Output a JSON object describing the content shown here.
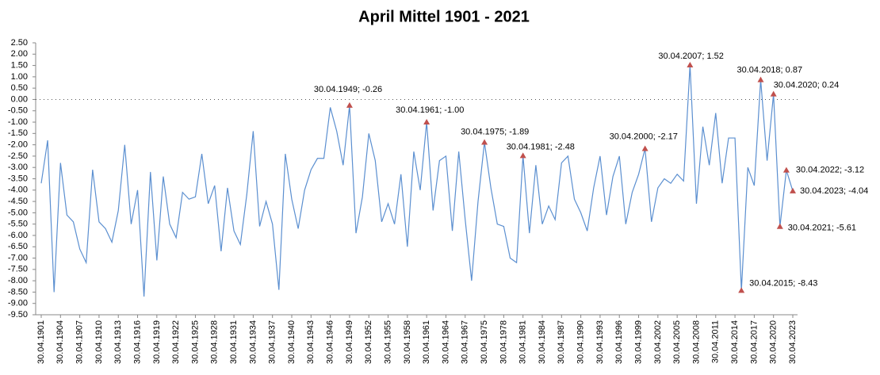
{
  "chart_data": {
    "type": "line",
    "title": "April Mittel 1901 - 2021",
    "categories": [
      "30.04.1901",
      null,
      null,
      "30.04.1904",
      null,
      null,
      "30.04.1907",
      null,
      null,
      "30.04.1910",
      null,
      null,
      "30.04.1913",
      null,
      null,
      "30.04.1916",
      null,
      null,
      "30.04.1919",
      null,
      null,
      "30.04.1922",
      null,
      null,
      "30.04.1925",
      null,
      null,
      "30.04.1928",
      null,
      null,
      "30.04.1931",
      null,
      null,
      "30.04.1934",
      null,
      null,
      "30.04.1937",
      null,
      null,
      "30.04.1940",
      null,
      null,
      "30.04.1943",
      null,
      null,
      "30.04.1946",
      null,
      null,
      "30.04.1949",
      null,
      null,
      "30.04.1952",
      null,
      null,
      "30.04.1955",
      null,
      null,
      "30.04.1958",
      null,
      null,
      "30.04.1961",
      null,
      null,
      "30.04.1964",
      null,
      null,
      "30.04.1967",
      null,
      null,
      "30.04.1975",
      null,
      null,
      "30.04.1978",
      null,
      null,
      "30.04.1981",
      null,
      null,
      "30.04.1984",
      null,
      null,
      "30.04.1987",
      null,
      null,
      "30.04.1990",
      null,
      null,
      "30.04.1993",
      null,
      null,
      "30.04.1996",
      null,
      null,
      "30.04.1999",
      null,
      null,
      "30.04.2002",
      null,
      null,
      "30.04.2005",
      null,
      null,
      "30.04.2008",
      null,
      null,
      "30.04.2011",
      null,
      null,
      "30.04.2014",
      null,
      null,
      "30.04.2017",
      null,
      null,
      "30.04.2020",
      null,
      null,
      "30.04.2023"
    ],
    "series": [
      {
        "color": "#5b8fd0",
        "values": [
          -3.7,
          -1.8,
          -8.5,
          -2.8,
          -5.1,
          -5.4,
          -6.6,
          -7.2,
          -3.1,
          -5.4,
          -5.7,
          -6.3,
          -4.9,
          -2.0,
          -5.5,
          -4.0,
          -8.7,
          -3.2,
          -7.1,
          -3.4,
          -5.5,
          -6.1,
          -4.1,
          -4.4,
          -4.3,
          -2.4,
          -4.6,
          -3.8,
          -6.7,
          -3.9,
          -5.8,
          -6.4,
          -4.2,
          -1.4,
          -5.6,
          -4.5,
          -5.5,
          -8.4,
          -2.4,
          -4.4,
          -5.7,
          -4.0,
          -3.1,
          -2.6,
          -2.6,
          -0.35,
          -1.4,
          -2.9,
          -0.26,
          -5.9,
          -4.3,
          -1.5,
          -2.7,
          -5.4,
          -4.6,
          -5.5,
          -3.3,
          -6.5,
          -2.3,
          -4.0,
          -1.0,
          -4.9,
          -2.7,
          -2.5,
          -5.8,
          -2.3,
          -5.3,
          -8.0,
          -4.5,
          -1.89,
          -3.9,
          -5.5,
          -5.6,
          -7.0,
          -7.2,
          -2.48,
          -5.9,
          -2.9,
          -5.5,
          -4.7,
          -5.3,
          -2.8,
          -2.5,
          -4.4,
          -5.0,
          -5.8,
          -3.9,
          -2.5,
          -5.1,
          -3.4,
          -2.5,
          -5.5,
          -4.1,
          -3.3,
          -2.17,
          -5.4,
          -3.9,
          -3.5,
          -3.7,
          -3.3,
          -3.6,
          1.52,
          -4.6,
          -1.2,
          -2.9,
          -0.6,
          -3.7,
          -1.7,
          -1.7,
          -8.43,
          -3.0,
          -3.8,
          0.87,
          -2.7,
          0.24,
          -5.61,
          -3.12,
          -4.04
        ]
      }
    ],
    "annotations": [
      {
        "index": 48,
        "text": "30.04.1949; -0.26"
      },
      {
        "index": 60,
        "text": "30.04.1961; -1.00"
      },
      {
        "index": 69,
        "text": "30.04.1975; -1.89"
      },
      {
        "index": 75,
        "text": "30.04.1981; -2.48"
      },
      {
        "index": 94,
        "text": "30.04.2000; -2.17"
      },
      {
        "index": 101,
        "text": "30.04.2007; 1.52"
      },
      {
        "index": 109,
        "text": "30.04.2015; -8.43"
      },
      {
        "index": 112,
        "text": "30.04.2018; 0.87"
      },
      {
        "index": 114,
        "text": "30.04.2020; 0.24"
      },
      {
        "index": 115,
        "text": "30.04.2021; -5.61"
      },
      {
        "index": 116,
        "text": "30.04.2022; -3.12"
      },
      {
        "index": 117,
        "text": "30.04.2023; -4.04"
      }
    ],
    "marker_color": "#c0504d",
    "ylim": [
      -9.5,
      2.5
    ],
    "yticks": [
      {
        "value": 2.5,
        "label": "2.50"
      },
      {
        "value": 2,
        "label": "2.00"
      },
      {
        "value": 1.5,
        "label": "1.50"
      },
      {
        "value": 1,
        "label": "1.00"
      },
      {
        "value": 0.5,
        "label": "0.50"
      },
      {
        "value": 0,
        "label": "0.00"
      },
      {
        "value": -0.5,
        "label": "-0.50"
      },
      {
        "value": -1,
        "label": "-1.00"
      },
      {
        "value": -1.5,
        "label": "-1.50"
      },
      {
        "value": -2,
        "label": "-2.00"
      },
      {
        "value": -2.5,
        "label": "-2.50"
      },
      {
        "value": -3,
        "label": "-3.00"
      },
      {
        "value": -3.5,
        "label": "-3.50"
      },
      {
        "value": -4,
        "label": "-4.00"
      },
      {
        "value": -4.5,
        "label": "-4.50"
      },
      {
        "value": -5,
        "label": "-5.00"
      },
      {
        "value": -5.5,
        "label": "-5.50"
      },
      {
        "value": -6,
        "label": "-6.00"
      },
      {
        "value": -6.5,
        "label": "-6.50"
      },
      {
        "value": -7,
        "label": "-7.00"
      },
      {
        "value": -7.5,
        "label": "-7.50"
      },
      {
        "value": -8,
        "label": "-8.00"
      },
      {
        "value": -8.5,
        "label": "-8.50"
      },
      {
        "value": -9,
        "label": "-9.00"
      },
      {
        "value": -9.5,
        "label": "-9.50"
      }
    ],
    "grid": false
  }
}
